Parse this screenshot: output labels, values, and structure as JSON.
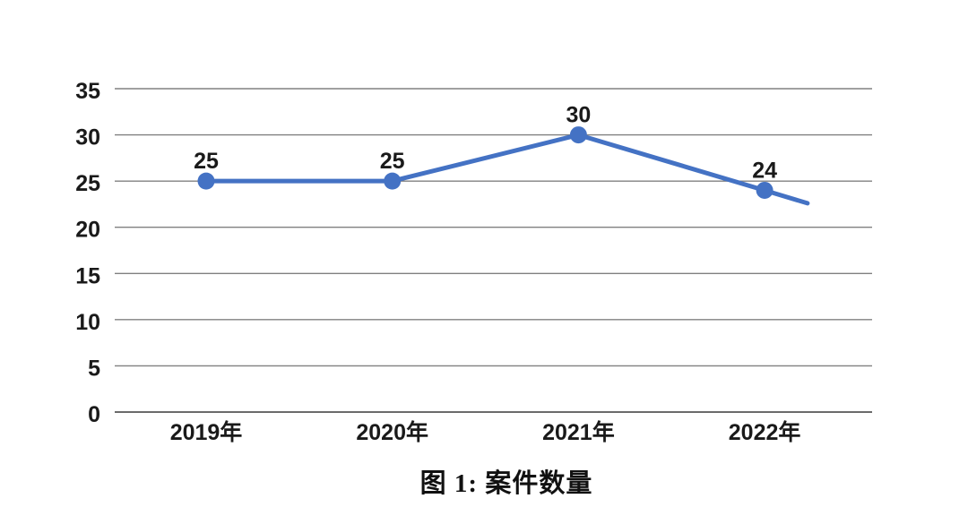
{
  "chart_data": {
    "type": "line",
    "categories": [
      "2019年",
      "2020年",
      "2021年",
      "2022年"
    ],
    "series": [
      {
        "name": "案件数量",
        "values": [
          25,
          25,
          30,
          24
        ]
      }
    ],
    "data_labels": [
      "25",
      "25",
      "30",
      "24"
    ],
    "ylim": [
      0,
      35
    ],
    "ytick_step": 5,
    "ytick_labels": [
      "0",
      "5",
      "10",
      "15",
      "20",
      "25",
      "30",
      "35"
    ],
    "xlabel": "",
    "ylabel": "",
    "grid": true,
    "legend_position": "none",
    "line_extension_end_value": 22.6,
    "caption": "图 1: 案件数量",
    "colors": {
      "line": "#4472c4",
      "marker": "#4472c4",
      "gridline": "#808080",
      "axis_line": "#6b6b6b",
      "text": "#1a1a1a",
      "background": "#ffffff"
    }
  }
}
